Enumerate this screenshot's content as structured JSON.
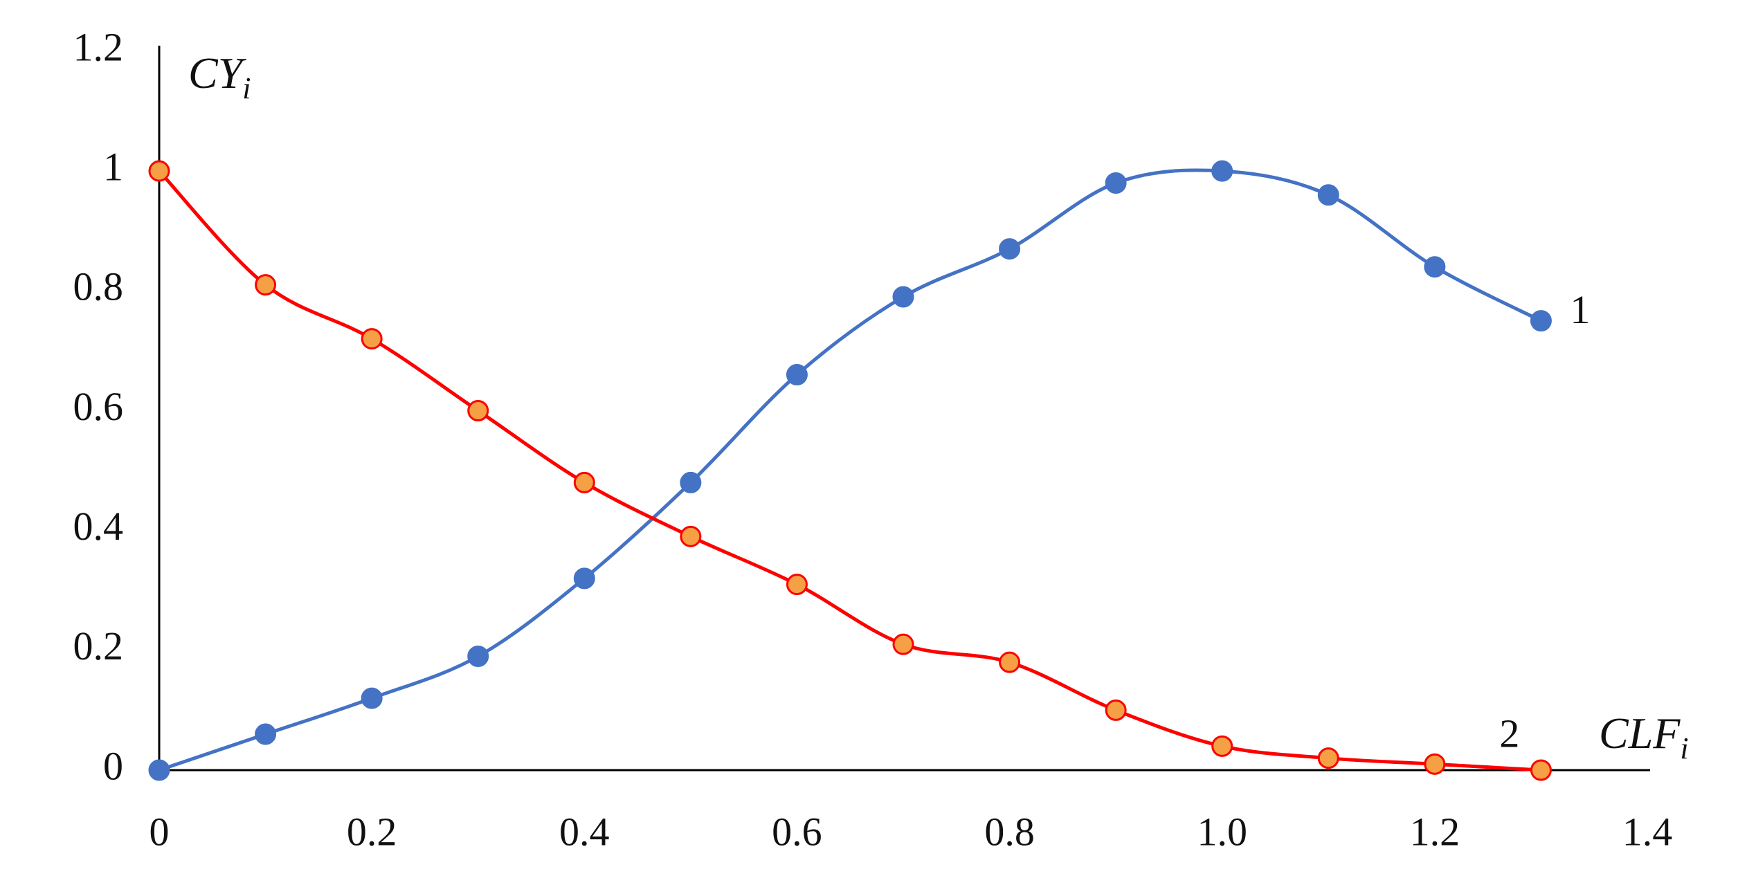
{
  "chart_data": {
    "type": "line",
    "x_label": {
      "text": "CLF",
      "subscript": "i"
    },
    "y_label": {
      "text": "CY",
      "subscript": "i"
    },
    "x": [
      0,
      0.1,
      0.2,
      0.3,
      0.4,
      0.5,
      0.6,
      0.7,
      0.8,
      0.9,
      1.0,
      1.1,
      1.2,
      1.3
    ],
    "series": [
      {
        "name": "1",
        "color": "#4472c4",
        "marker_fill": "#4472c4",
        "values": [
          0,
          0.06,
          0.12,
          0.19,
          0.32,
          0.48,
          0.66,
          0.79,
          0.87,
          0.98,
          1.0,
          0.96,
          0.84,
          0.75
        ]
      },
      {
        "name": "2",
        "color": "#ff0000",
        "marker_fill": "#f5a045",
        "values": [
          1.0,
          0.81,
          0.72,
          0.6,
          0.48,
          0.39,
          0.31,
          0.21,
          0.18,
          0.1,
          0.04,
          0.02,
          0.01,
          0.0
        ]
      }
    ],
    "xlim": [
      0,
      1.4
    ],
    "ylim": [
      0,
      1.2
    ],
    "xticks": [
      0,
      0.2,
      0.4,
      0.6,
      0.8,
      {
        "value": 1,
        "label": "1.0"
      },
      1.2,
      1.4
    ],
    "yticks": [
      0,
      0.2,
      0.4,
      0.6,
      0.8,
      1,
      1.2
    ],
    "smooth": true,
    "grid": false
  }
}
